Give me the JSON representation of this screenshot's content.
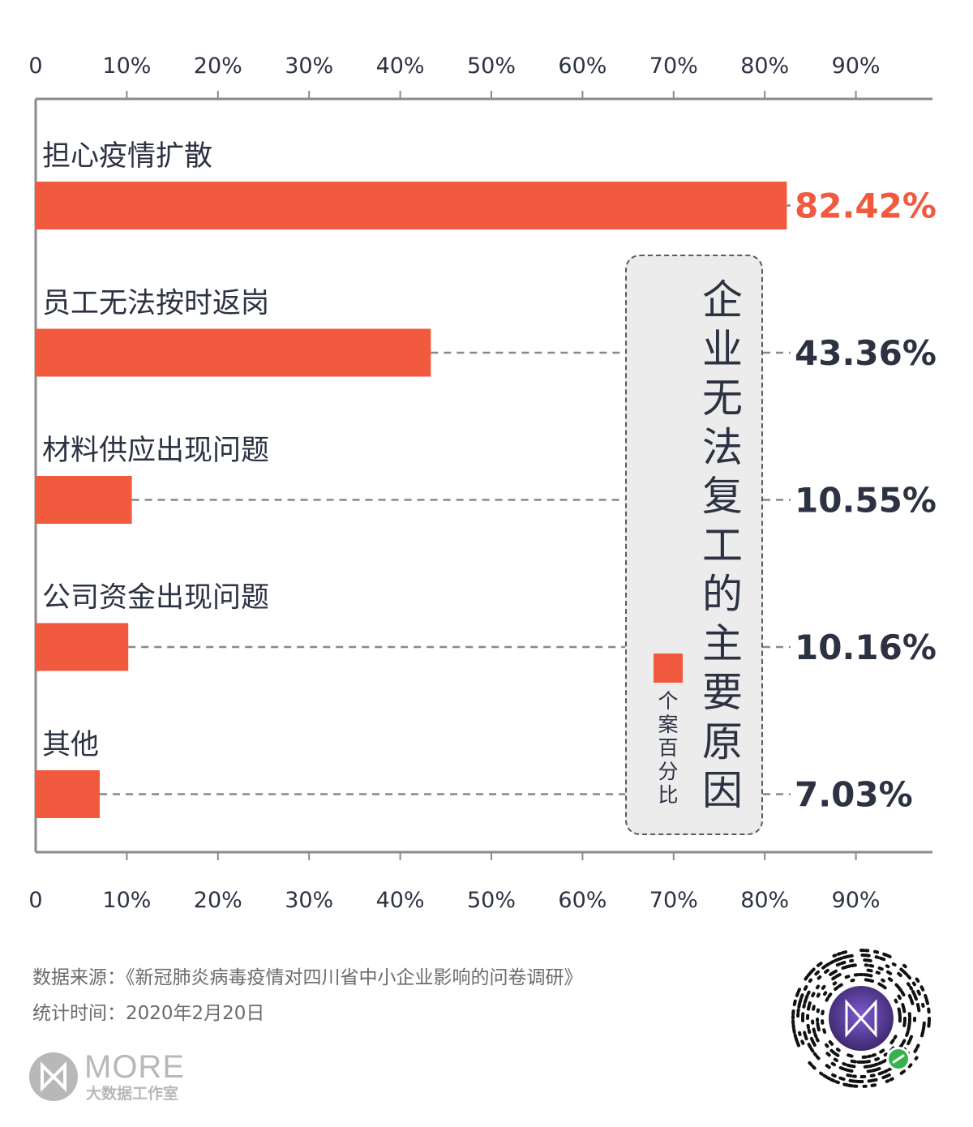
{
  "chart_data": {
    "type": "bar",
    "orientation": "horizontal",
    "categories": [
      "担心疫情扩散",
      "员工无法按时返岗",
      "材料供应出现问题",
      "公司资金出现问题",
      "其他"
    ],
    "values": [
      82.42,
      43.36,
      10.55,
      10.16,
      7.03
    ],
    "value_labels": [
      "82.42%",
      "43.36%",
      "10.55%",
      "10.16%",
      "7.03%"
    ],
    "x_ticks": [
      0,
      10,
      20,
      30,
      40,
      50,
      60,
      70,
      80,
      90
    ],
    "x_tick_labels": [
      "0",
      "10%",
      "20%",
      "30%",
      "40%",
      "50%",
      "60%",
      "70%",
      "80%",
      "90%"
    ],
    "xlim": [
      0,
      98
    ],
    "axis_position": "top and bottom",
    "grid": false,
    "legend_placement": "right, vertical",
    "title": "企业无法复工的主要原因",
    "legend": {
      "label": "个案百分比"
    },
    "bar_color": "#f15a3f",
    "highlight_color": "#f15a3f",
    "text_color": "#2c3242",
    "axis_color": "#8a8a8a"
  },
  "footer": {
    "source": "数据来源：《新冠肺炎病毒疫情对四川省中小企业影响的问卷调研》",
    "date": "统计时间：2020年2月20日"
  },
  "brand": {
    "name": "MORE",
    "subtitle": "大数据工作室"
  }
}
